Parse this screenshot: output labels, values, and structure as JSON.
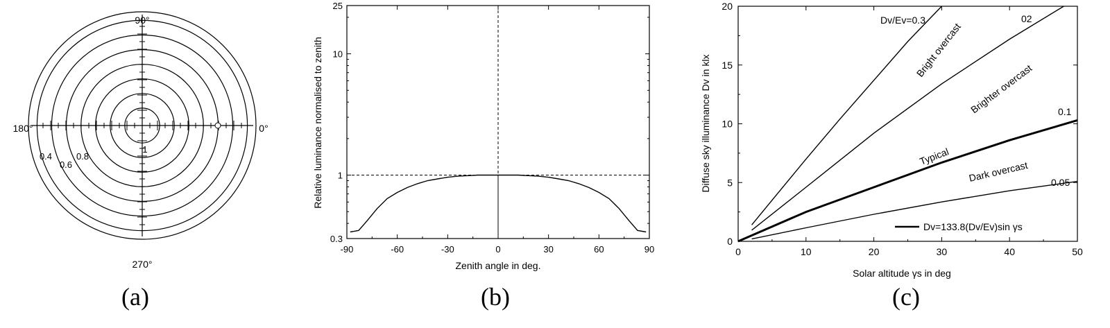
{
  "chart_data": [
    {
      "type": "polar",
      "panel_label": "(a)",
      "angle_labels": {
        "top": "90°",
        "left": "180°",
        "right": "0°",
        "bottom": "270°"
      },
      "ring_values": [
        0.3,
        0.4,
        0.5,
        0.6,
        0.7,
        0.8,
        0.9
      ],
      "radial_labels": [
        "0.4",
        "0.6",
        "0.8",
        "1"
      ]
    },
    {
      "type": "line",
      "panel_label": "(b)",
      "xlabel": "Zenith angle in deg.",
      "ylabel": "Relative luminance normalised to zenith",
      "xlim": [
        -90,
        90
      ],
      "ylim": [
        0.3,
        25
      ],
      "yscale": "log",
      "xticks": [
        "-90",
        "-60",
        "-30",
        "0",
        "30",
        "60",
        "90"
      ],
      "yticks": [
        "0.3",
        "1",
        "10",
        "25"
      ],
      "reference_lines": {
        "x": 0,
        "y": 1
      },
      "series": [
        {
          "x": [
            -88,
            -83,
            -78,
            -72,
            -66,
            -60,
            -54,
            -48,
            -42,
            -36,
            -30,
            -24,
            -18,
            -12,
            -6,
            0,
            6,
            12,
            18,
            24,
            30,
            36,
            42,
            48,
            54,
            60,
            66,
            72,
            78,
            83,
            88
          ],
          "values": [
            0.34,
            0.35,
            0.42,
            0.53,
            0.64,
            0.72,
            0.79,
            0.85,
            0.9,
            0.93,
            0.96,
            0.98,
            0.99,
            1.0,
            1.0,
            1.0,
            1.0,
            1.0,
            0.99,
            0.98,
            0.96,
            0.93,
            0.9,
            0.85,
            0.79,
            0.72,
            0.64,
            0.53,
            0.42,
            0.35,
            0.34
          ]
        }
      ]
    },
    {
      "type": "line",
      "panel_label": "(c)",
      "xlabel": "Solar altitude γs in deg",
      "ylabel": "Diffuse sky illuminance Dv in klx",
      "xlim": [
        0,
        50
      ],
      "ylim": [
        0,
        20
      ],
      "xticks": [
        "0",
        "10",
        "20",
        "30",
        "40",
        "50"
      ],
      "yticks": [
        "0",
        "5",
        "10",
        "15",
        "20"
      ],
      "legend": "Dv=133.8(Dv/Ev)sin γs",
      "series": [
        {
          "ratio": 0.3,
          "x": [
            2,
            5,
            10,
            15,
            20,
            25,
            30
          ],
          "values": [
            1.4,
            3.5,
            7.0,
            10.4,
            13.7,
            17.0,
            20.0
          ],
          "width": 1.4
        },
        {
          "ratio": 0.2,
          "x": [
            2,
            10,
            20,
            30,
            40,
            48
          ],
          "values": [
            0.95,
            4.6,
            9.2,
            13.4,
            17.2,
            20.0
          ],
          "width": 1.4
        },
        {
          "ratio": 0.1,
          "x": [
            0,
            2,
            10,
            20,
            30,
            40,
            50
          ],
          "values": [
            0.0,
            0.5,
            2.5,
            4.6,
            6.7,
            8.6,
            10.3
          ],
          "width": 3
        },
        {
          "ratio": 0.05,
          "x": [
            2,
            10,
            20,
            30,
            40,
            50
          ],
          "values": [
            0.2,
            1.15,
            2.3,
            3.35,
            4.3,
            5.1
          ],
          "width": 1.4
        }
      ],
      "annotations": {
        "ratio_03": "Dv/Ev=0.3",
        "ratio_02": "02",
        "ratio_01": "0.1",
        "ratio_005": "0.05",
        "bright": "Bright  overcast",
        "brighter": "Brighter  overcast",
        "typical": "Typical",
        "dark": "Dark overcast"
      }
    }
  ]
}
